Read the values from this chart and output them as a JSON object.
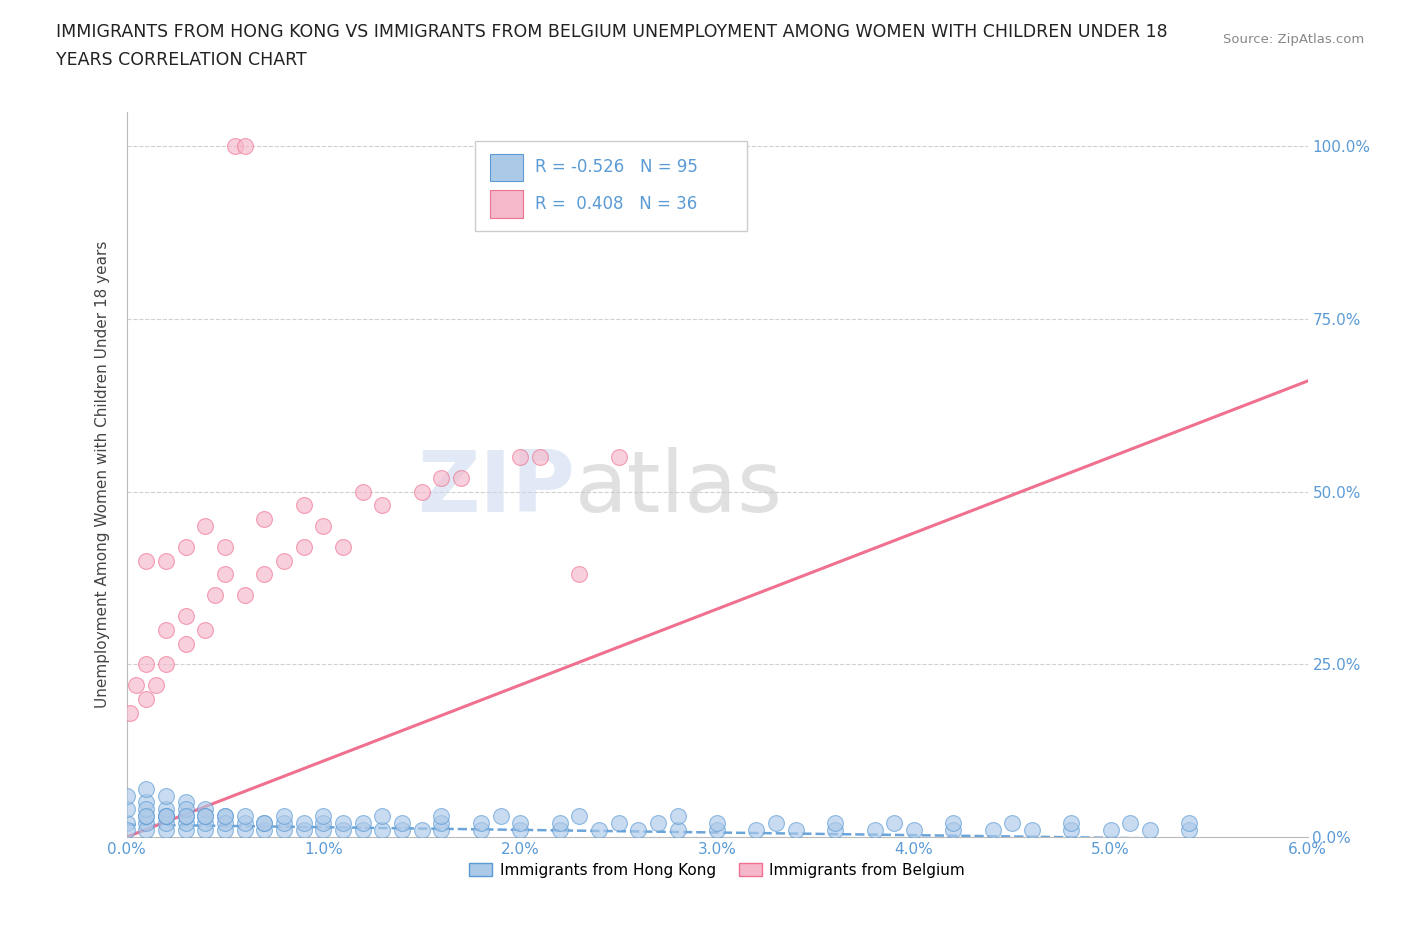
{
  "title_line1": "IMMIGRANTS FROM HONG KONG VS IMMIGRANTS FROM BELGIUM UNEMPLOYMENT AMONG WOMEN WITH CHILDREN UNDER 18",
  "title_line2": "YEARS CORRELATION CHART",
  "source": "Source: ZipAtlas.com",
  "ylabel": "Unemployment Among Women with Children Under 18 years",
  "xlim": [
    0.0,
    0.06
  ],
  "ylim": [
    0.0,
    1.05
  ],
  "x_ticks": [
    0.0,
    0.01,
    0.02,
    0.03,
    0.04,
    0.05,
    0.06
  ],
  "x_tick_labels": [
    "0.0%",
    "1.0%",
    "2.0%",
    "3.0%",
    "4.0%",
    "5.0%",
    "6.0%"
  ],
  "y_ticks": [
    0.0,
    0.25,
    0.5,
    0.75,
    1.0
  ],
  "y_tick_labels": [
    "0.0%",
    "25.0%",
    "50.0%",
    "75.0%",
    "100.0%"
  ],
  "hk_R": -0.526,
  "hk_N": 95,
  "bel_R": 0.408,
  "bel_N": 36,
  "hk_color": "#adc9e8",
  "bel_color": "#f5b8cb",
  "hk_line_color": "#5b9bd5",
  "bel_line_color": "#f07090",
  "hk_line_style": "solid",
  "bel_line_style": "solid",
  "watermark_zip": "ZIP",
  "watermark_atlas": "atlas",
  "legend_labels": [
    "Immigrants from Hong Kong",
    "Immigrants from Belgium"
  ],
  "background_color": "#ffffff",
  "grid_color": "#d0d0d0",
  "title_color": "#222222",
  "axis_label_color": "#444444",
  "tick_label_color": "#5b9bd5",
  "hk_line_x0": 0.0,
  "hk_line_x1": 0.06,
  "hk_line_y0": 0.018,
  "hk_line_y1": -0.005,
  "bel_line_x0": 0.0,
  "bel_line_x1": 0.06,
  "bel_line_y0": 0.0,
  "bel_line_y1": 0.66,
  "hk_scatter_x": [
    0.0,
    0.0,
    0.0,
    0.0,
    0.001,
    0.001,
    0.001,
    0.001,
    0.001,
    0.002,
    0.002,
    0.002,
    0.002,
    0.002,
    0.003,
    0.003,
    0.003,
    0.003,
    0.004,
    0.004,
    0.004,
    0.005,
    0.005,
    0.006,
    0.006,
    0.007,
    0.007,
    0.008,
    0.009,
    0.01,
    0.011,
    0.012,
    0.013,
    0.014,
    0.015,
    0.016,
    0.018,
    0.02,
    0.022,
    0.024,
    0.026,
    0.028,
    0.03,
    0.032,
    0.034,
    0.036,
    0.038,
    0.04,
    0.042,
    0.044,
    0.046,
    0.048,
    0.05,
    0.052,
    0.054,
    0.001,
    0.002,
    0.003,
    0.004,
    0.005,
    0.006,
    0.007,
    0.008,
    0.009,
    0.01,
    0.011,
    0.012,
    0.014,
    0.016,
    0.018,
    0.02,
    0.022,
    0.025,
    0.027,
    0.03,
    0.033,
    0.036,
    0.039,
    0.042,
    0.045,
    0.048,
    0.051,
    0.054,
    0.001,
    0.002,
    0.003,
    0.004,
    0.005,
    0.008,
    0.01,
    0.013,
    0.016,
    0.019,
    0.023,
    0.028
  ],
  "hk_scatter_y": [
    0.02,
    0.04,
    0.06,
    0.01,
    0.01,
    0.02,
    0.03,
    0.05,
    0.07,
    0.01,
    0.02,
    0.03,
    0.04,
    0.06,
    0.01,
    0.02,
    0.03,
    0.05,
    0.01,
    0.02,
    0.04,
    0.01,
    0.03,
    0.01,
    0.02,
    0.01,
    0.02,
    0.01,
    0.01,
    0.01,
    0.01,
    0.01,
    0.01,
    0.01,
    0.01,
    0.01,
    0.01,
    0.01,
    0.01,
    0.01,
    0.01,
    0.01,
    0.01,
    0.01,
    0.01,
    0.01,
    0.01,
    0.01,
    0.01,
    0.01,
    0.01,
    0.01,
    0.01,
    0.01,
    0.01,
    0.04,
    0.03,
    0.04,
    0.03,
    0.02,
    0.03,
    0.02,
    0.02,
    0.02,
    0.02,
    0.02,
    0.02,
    0.02,
    0.02,
    0.02,
    0.02,
    0.02,
    0.02,
    0.02,
    0.02,
    0.02,
    0.02,
    0.02,
    0.02,
    0.02,
    0.02,
    0.02,
    0.02,
    0.03,
    0.03,
    0.03,
    0.03,
    0.03,
    0.03,
    0.03,
    0.03,
    0.03,
    0.03,
    0.03,
    0.03
  ],
  "bel_scatter_x": [
    0.0002,
    0.0005,
    0.001,
    0.001,
    0.0015,
    0.002,
    0.002,
    0.003,
    0.003,
    0.004,
    0.0045,
    0.005,
    0.006,
    0.007,
    0.008,
    0.009,
    0.01,
    0.011,
    0.013,
    0.015,
    0.017,
    0.02,
    0.023,
    0.001,
    0.002,
    0.003,
    0.004,
    0.005,
    0.007,
    0.009,
    0.012,
    0.016,
    0.021,
    0.025,
    0.0055,
    0.006
  ],
  "bel_scatter_y": [
    0.18,
    0.22,
    0.2,
    0.25,
    0.22,
    0.25,
    0.3,
    0.28,
    0.32,
    0.3,
    0.35,
    0.38,
    0.35,
    0.38,
    0.4,
    0.42,
    0.45,
    0.42,
    0.48,
    0.5,
    0.52,
    0.55,
    0.38,
    0.4,
    0.4,
    0.42,
    0.45,
    0.42,
    0.46,
    0.48,
    0.5,
    0.52,
    0.55,
    0.55,
    1.0,
    1.0
  ]
}
